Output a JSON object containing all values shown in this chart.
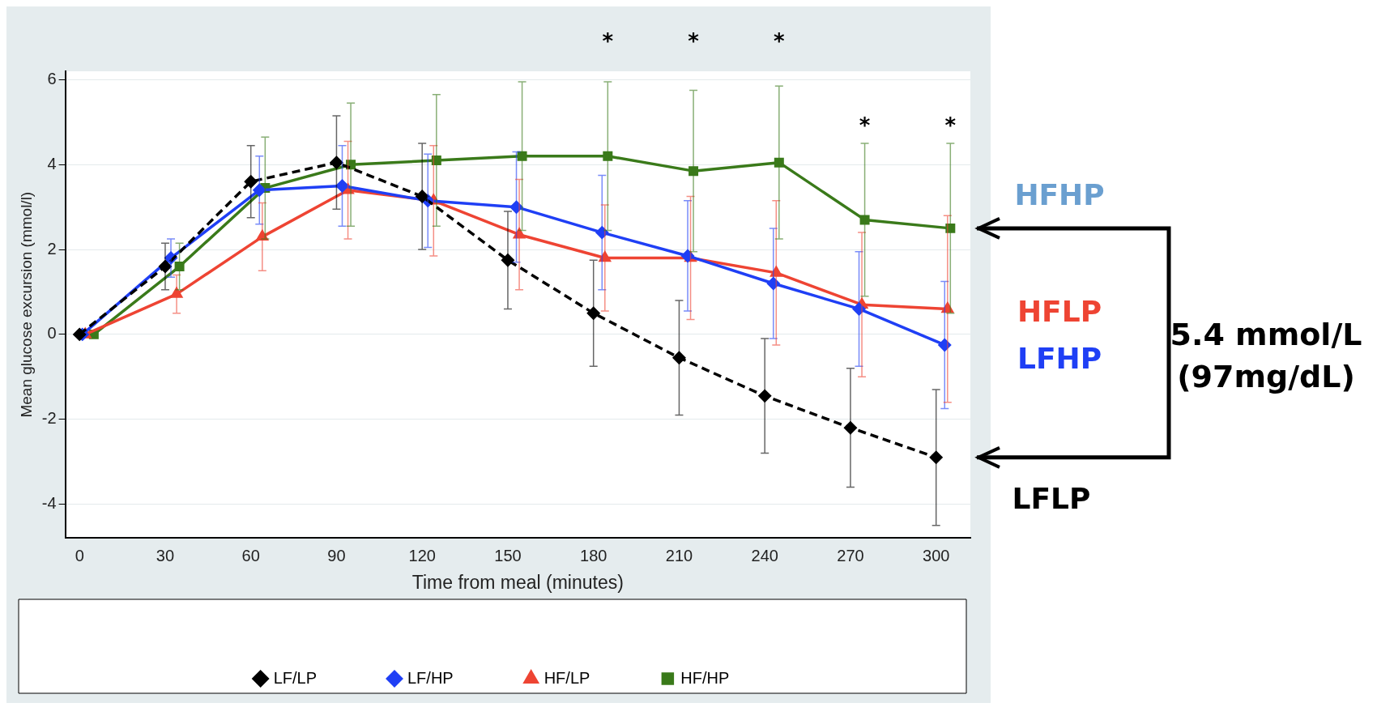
{
  "chart_data": {
    "type": "line",
    "xlabel": "Time from meal (minutes)",
    "ylabel": "Mean glucose excursion (mmol/l)",
    "xlim": [
      -5,
      312
    ],
    "xticks": [
      0,
      30,
      60,
      90,
      120,
      150,
      180,
      210,
      240,
      270,
      300
    ],
    "ylim": [
      -4.8,
      6.2
    ],
    "yticks": [
      -4,
      -2,
      0,
      2,
      4,
      6
    ],
    "grid": "y",
    "legend": "bottom",
    "series": [
      {
        "name": "LF/LP",
        "color": "#000000",
        "line_style": "dashed",
        "marker": "diamond",
        "x": [
          0,
          30,
          60,
          90,
          120,
          150,
          180,
          210,
          240,
          270,
          300
        ],
        "values": [
          0,
          1.6,
          3.6,
          4.05,
          3.25,
          1.75,
          0.5,
          -0.55,
          -1.45,
          -2.2,
          -2.9
        ],
        "errors": [
          null,
          0.55,
          0.85,
          1.1,
          1.25,
          1.15,
          1.25,
          1.35,
          1.35,
          1.4,
          1.6
        ]
      },
      {
        "name": "LF/HP",
        "color": "#1f3ff5",
        "line_style": "solid",
        "marker": "diamond",
        "x": [
          1,
          32,
          63,
          92,
          122,
          153,
          183,
          213,
          243,
          273,
          303
        ],
        "values": [
          0,
          1.8,
          3.4,
          3.5,
          3.15,
          3.0,
          2.4,
          1.85,
          1.2,
          0.6,
          -0.25
        ],
        "errors": [
          null,
          0.45,
          0.8,
          0.95,
          1.1,
          1.3,
          1.35,
          1.3,
          1.3,
          1.35,
          1.5
        ]
      },
      {
        "name": "HF/LP",
        "color": "#ee4433",
        "line_style": "solid",
        "marker": "triangle",
        "x": [
          2,
          34,
          64,
          94,
          124,
          154,
          184,
          214,
          244,
          274,
          304
        ],
        "values": [
          0,
          0.95,
          2.3,
          3.4,
          3.15,
          2.35,
          1.8,
          1.8,
          1.45,
          0.7,
          0.6
        ],
        "errors": [
          null,
          0.45,
          0.8,
          1.15,
          1.3,
          1.3,
          1.25,
          1.45,
          1.7,
          1.7,
          2.2
        ]
      },
      {
        "name": "HF/HP",
        "color": "#3a7a1a",
        "line_style": "solid",
        "marker": "square",
        "x": [
          5,
          35,
          65,
          95,
          125,
          155,
          185,
          215,
          245,
          275,
          305
        ],
        "values": [
          0,
          1.6,
          3.45,
          4.0,
          4.1,
          4.2,
          4.2,
          3.85,
          4.05,
          2.7,
          2.5
        ],
        "errors": [
          null,
          0.55,
          1.2,
          1.45,
          1.55,
          1.75,
          1.75,
          1.9,
          1.8,
          1.8,
          2.0
        ]
      }
    ],
    "annotations": [
      "*",
      "*",
      "*",
      "*",
      "*",
      "HFHP",
      "HFLP",
      "LFHP",
      "LFLP",
      "5.4 mmol/L",
      "(97mg/dL)"
    ]
  }
}
